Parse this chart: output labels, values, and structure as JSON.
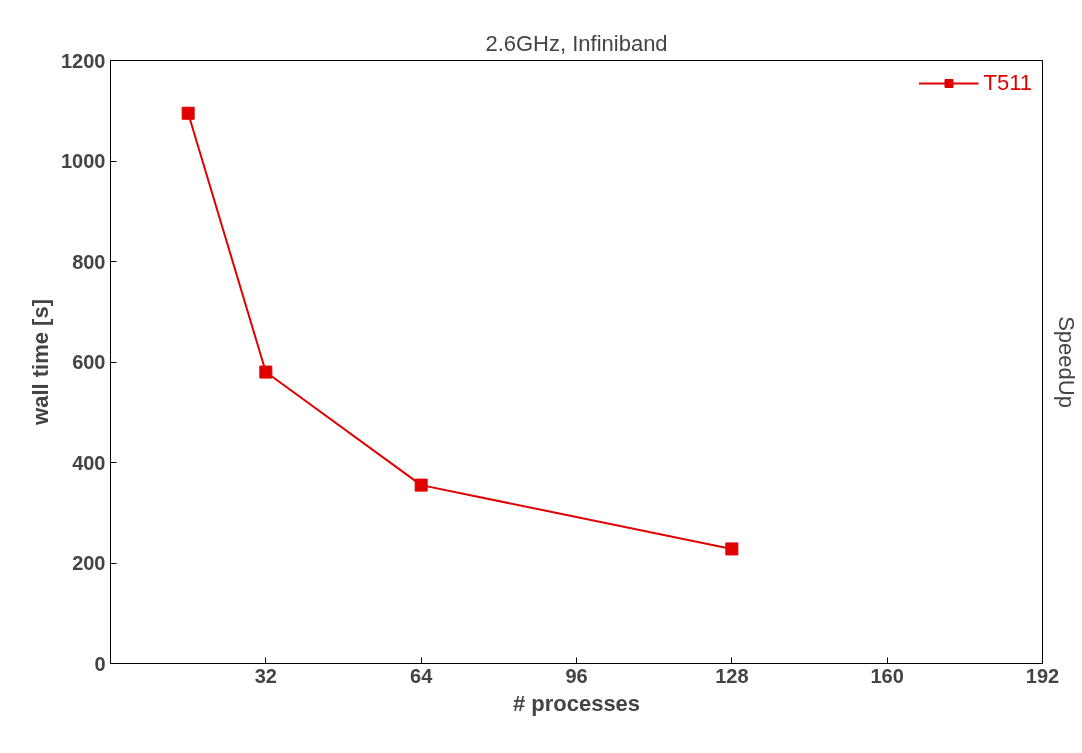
{
  "chart_data": {
    "type": "line",
    "title": "2.6GHz, Infiniband",
    "xlabel": "# processes",
    "ylabel": "wall time [s]",
    "y2label": "SpeedUp",
    "x": [
      16,
      32,
      64,
      128
    ],
    "series": [
      {
        "name": "T511",
        "color": "#e00000",
        "values": [
          1095,
          580,
          355,
          228
        ]
      }
    ],
    "xlim": [
      0,
      192
    ],
    "xticks": [
      32,
      64,
      96,
      128,
      160,
      192
    ],
    "ylim": [
      0,
      1200
    ],
    "yticks": [
      0,
      200,
      400,
      600,
      800,
      1000,
      1200
    ],
    "marker": "square",
    "line_style": "solid",
    "grid": false,
    "legend": "top right"
  }
}
